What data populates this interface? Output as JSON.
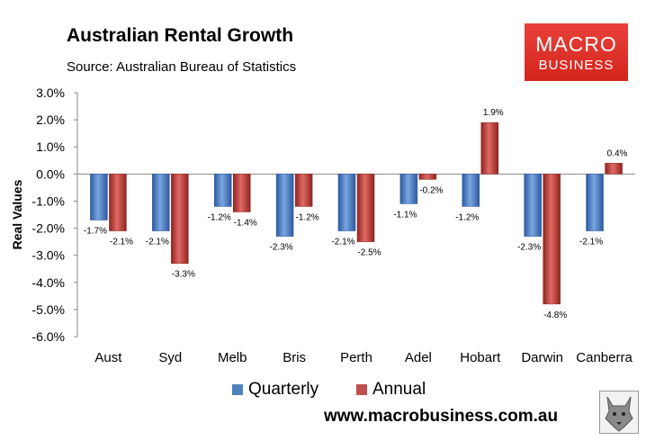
{
  "header": {
    "title": "Australian Rental Growth",
    "subtitle": "Source: Australian Bureau of Statistics"
  },
  "logo": {
    "line1": "MACRO",
    "line2": "BUSINESS"
  },
  "footer": {
    "website": "www.macrobusiness.com.au",
    "wolf_icon": "wolf-icon"
  },
  "colors": {
    "quarterly": "#4f81bd",
    "annual": "#c0504d",
    "plot_bg": "#ffffff",
    "page_bg": "#ffffff",
    "logo_red": "#e0302a"
  },
  "chart_data": {
    "type": "bar",
    "title": "Australian Rental Growth",
    "subtitle": "Source: Australian Bureau of Statistics",
    "xlabel": "",
    "ylabel": "Real Values",
    "ylim": [
      -6.0,
      3.0
    ],
    "yticks": [
      "-6.0%",
      "-5.0%",
      "-4.0%",
      "-3.0%",
      "-2.0%",
      "-1.0%",
      "0.0%",
      "1.0%",
      "2.0%",
      "3.0%"
    ],
    "grid": false,
    "legend_position": "bottom",
    "categories": [
      "Aust",
      "Syd",
      "Melb",
      "Bris",
      "Perth",
      "Adel",
      "Hobart",
      "Darwin",
      "Canberra"
    ],
    "series": [
      {
        "name": "Quarterly",
        "values": [
          -1.7,
          -2.1,
          -1.2,
          -2.3,
          -2.1,
          -1.1,
          -1.2,
          -2.3,
          -2.1
        ],
        "labels": [
          "-1.7%",
          "-2.1%",
          "-1.2%",
          "-2.3%",
          "-2.1%",
          "-1.1%",
          "-1.2%",
          "-2.3%",
          "-2.1%"
        ]
      },
      {
        "name": "Annual",
        "values": [
          -2.1,
          -3.3,
          -1.4,
          -1.2,
          -2.5,
          -0.2,
          1.9,
          -4.8,
          0.4
        ],
        "labels": [
          "-2.1%",
          "-3.3%",
          "-1.4%",
          "-1.2%",
          "-2.5%",
          "-0.2%",
          "1.9%",
          "-4.8%",
          "0.4%"
        ]
      }
    ]
  }
}
